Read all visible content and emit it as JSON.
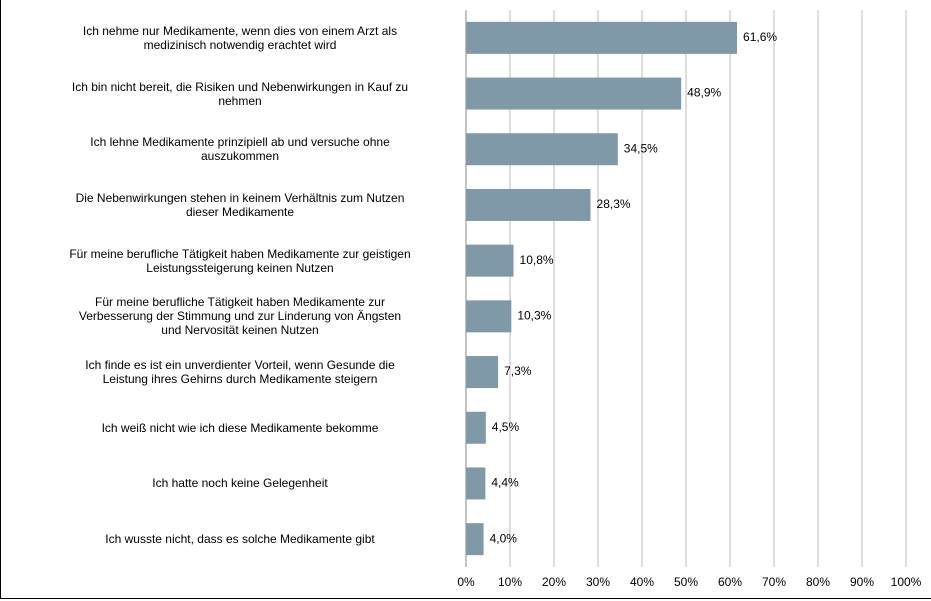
{
  "chart_data": {
    "type": "bar",
    "orientation": "horizontal",
    "categories": [
      "Ich nehme nur Medikamente, wenn dies von einem Arzt als\nmedizinisch notwendig erachtet wird",
      "Ich bin nicht bereit, die Risiken und Nebenwirkungen in Kauf zu\nnehmen",
      "Ich lehne Medikamente prinzipiell ab und versuche ohne\nauszukommen",
      "Die Nebenwirkungen stehen in keinem Verhältnis zum Nutzen\ndieser Medikamente",
      "Für meine berufliche Tätigkeit haben Medikamente zur geistigen\nLeistungssteigerung keinen Nutzen",
      "Für meine berufliche Tätigkeit haben Medikamente zur\nVerbesserung der Stimmung und zur Linderung von Ängsten\nund Nervosität keinen Nutzen",
      "Ich finde es ist ein unverdienter Vorteil, wenn Gesunde die\nLeistung ihres Gehirns durch Medikamente steigern",
      "Ich weiß nicht wie ich diese Medikamente bekomme",
      "Ich hatte noch keine Gelegenheit",
      "Ich wusste nicht, dass es solche Medikamente gibt"
    ],
    "values": [
      61.6,
      48.9,
      34.5,
      28.3,
      10.8,
      10.3,
      7.3,
      4.5,
      4.4,
      4.0
    ],
    "value_labels": [
      "61,6%",
      "48,9%",
      "34,5%",
      "28,3%",
      "10,8%",
      "10,3%",
      "7,3%",
      "4,5%",
      "4,4%",
      "4,0%"
    ],
    "color": "#7f99a8",
    "xlim": [
      0,
      100
    ],
    "xticks": [
      {
        "value": 0,
        "label": "0%"
      },
      {
        "value": 10,
        "label": "10%"
      },
      {
        "value": 20,
        "label": "20%"
      },
      {
        "value": 30,
        "label": "30%"
      },
      {
        "value": 40,
        "label": "40%"
      },
      {
        "value": 50,
        "label": "50%"
      },
      {
        "value": 60,
        "label": "60%"
      },
      {
        "value": 70,
        "label": "70%"
      },
      {
        "value": 80,
        "label": "80%"
      },
      {
        "value": 90,
        "label": "90%"
      },
      {
        "value": 100,
        "label": "100%"
      }
    ],
    "grid": true
  }
}
